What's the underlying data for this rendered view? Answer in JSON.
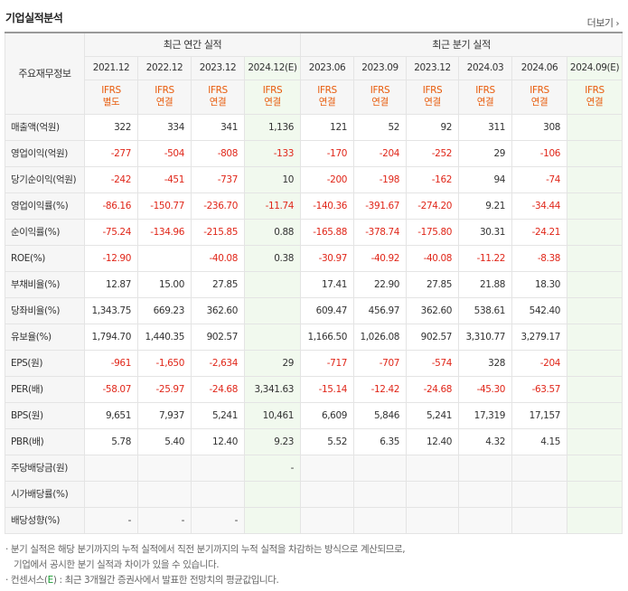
{
  "title": "기업실적분석",
  "more_label": "더보기",
  "row_header_label": "주요재무정보",
  "group_annual": "최근 연간 실적",
  "group_quarter": "최근 분기 실적",
  "columns": [
    {
      "period": "2021.12",
      "basis1": "IFRS",
      "basis2": "별도",
      "est": false
    },
    {
      "period": "2022.12",
      "basis1": "IFRS",
      "basis2": "연결",
      "est": false
    },
    {
      "period": "2023.12",
      "basis1": "IFRS",
      "basis2": "연결",
      "est": false
    },
    {
      "period": "2024.12(E)",
      "basis1": "IFRS",
      "basis2": "연결",
      "est": true
    },
    {
      "period": "2023.06",
      "basis1": "IFRS",
      "basis2": "연결",
      "est": false
    },
    {
      "period": "2023.09",
      "basis1": "IFRS",
      "basis2": "연결",
      "est": false
    },
    {
      "period": "2023.12",
      "basis1": "IFRS",
      "basis2": "연결",
      "est": false
    },
    {
      "period": "2024.03",
      "basis1": "IFRS",
      "basis2": "연결",
      "est": false
    },
    {
      "period": "2024.06",
      "basis1": "IFRS",
      "basis2": "연결",
      "est": false
    },
    {
      "period": "2024.09(E)",
      "basis1": "IFRS",
      "basis2": "연결",
      "est": true
    }
  ],
  "rows": [
    {
      "label": "매출액(억원)",
      "values": [
        "322",
        "334",
        "341",
        "1,136",
        "121",
        "52",
        "92",
        "311",
        "308",
        ""
      ]
    },
    {
      "label": "영업이익(억원)",
      "values": [
        "-277",
        "-504",
        "-808",
        "-133",
        "-170",
        "-204",
        "-252",
        "29",
        "-106",
        ""
      ]
    },
    {
      "label": "당기순이익(억원)",
      "values": [
        "-242",
        "-451",
        "-737",
        "10",
        "-200",
        "-198",
        "-162",
        "94",
        "-74",
        ""
      ]
    },
    {
      "label": "영업이익률(%)",
      "values": [
        "-86.16",
        "-150.77",
        "-236.70",
        "-11.74",
        "-140.36",
        "-391.67",
        "-274.20",
        "9.21",
        "-34.44",
        ""
      ]
    },
    {
      "label": "순이익률(%)",
      "values": [
        "-75.24",
        "-134.96",
        "-215.85",
        "0.88",
        "-165.88",
        "-378.74",
        "-175.80",
        "30.31",
        "-24.21",
        ""
      ]
    },
    {
      "label": "ROE(%)",
      "values": [
        "-12.90",
        "",
        "-40.08",
        "0.38",
        "-30.97",
        "-40.92",
        "-40.08",
        "-11.22",
        "-8.38",
        ""
      ]
    },
    {
      "label": "부채비율(%)",
      "values": [
        "12.87",
        "15.00",
        "27.85",
        "",
        "17.41",
        "22.90",
        "27.85",
        "21.88",
        "18.30",
        ""
      ]
    },
    {
      "label": "당좌비율(%)",
      "values": [
        "1,343.75",
        "669.23",
        "362.60",
        "",
        "609.47",
        "456.97",
        "362.60",
        "538.61",
        "542.40",
        ""
      ]
    },
    {
      "label": "유보율(%)",
      "values": [
        "1,794.70",
        "1,440.35",
        "902.57",
        "",
        "1,166.50",
        "1,026.08",
        "902.57",
        "3,310.77",
        "3,279.17",
        ""
      ]
    },
    {
      "label": "EPS(원)",
      "values": [
        "-961",
        "-1,650",
        "-2,634",
        "29",
        "-717",
        "-707",
        "-574",
        "328",
        "-204",
        ""
      ]
    },
    {
      "label": "PER(배)",
      "values": [
        "-58.07",
        "-25.97",
        "-24.68",
        "3,341.63",
        "-15.14",
        "-12.42",
        "-24.68",
        "-45.30",
        "-63.57",
        ""
      ]
    },
    {
      "label": "BPS(원)",
      "values": [
        "9,651",
        "7,937",
        "5,241",
        "10,461",
        "6,609",
        "5,846",
        "5,241",
        "17,319",
        "17,157",
        ""
      ]
    },
    {
      "label": "PBR(배)",
      "values": [
        "5.78",
        "5.40",
        "12.40",
        "9.23",
        "5.52",
        "6.35",
        "12.40",
        "4.32",
        "4.15",
        ""
      ]
    },
    {
      "label": "주당배당금(원)",
      "values": [
        "",
        "",
        "",
        "-",
        "",
        "",
        "",
        "",
        "",
        ""
      ]
    },
    {
      "label": "시가배당률(%)",
      "values": [
        "",
        "",
        "",
        "",
        "",
        "",
        "",
        "",
        "",
        ""
      ]
    },
    {
      "label": "배당성향(%)",
      "values": [
        "-",
        "-",
        "-",
        "",
        "",
        "",
        "",
        "",
        "",
        ""
      ]
    }
  ],
  "notes": {
    "line1": "· 분기 실적은 해당 분기까지의 누적 실적에서 직전 분기까지의 누적 실적을 차감하는 방식으로 계산되므로,",
    "line2": "기업에서 공시한 분기 실적과 차이가 있을 수 있습니다.",
    "line3_pre": "· 컨센서스(",
    "line3_e": "E",
    "line3_post": ") : 최근 3개월간 증권사에서 발표한 전망치의 평균값입니다."
  },
  "colors": {
    "negative": "#e0271a",
    "ifrs": "#e85c0d",
    "estimate_bg": "#f1f9ee",
    "estimate_tag": "#1a9b32"
  }
}
